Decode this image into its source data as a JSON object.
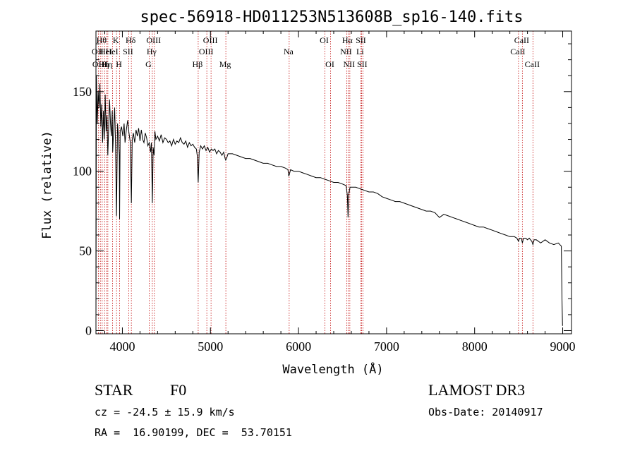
{
  "chart_data": {
    "type": "line",
    "title": "spec-56918-HD011253N513608B_sp16-140.fits",
    "xlabel": "Wavelength (Å)",
    "ylabel": "Flux (relative)",
    "xlim": [
      3700,
      9100
    ],
    "ylim": [
      -2,
      188
    ],
    "x_ticks": [
      4000,
      5000,
      6000,
      7000,
      8000,
      9000
    ],
    "x_tick_labels": [
      "4000",
      "5000",
      "6000",
      "7000",
      "8000",
      "9000"
    ],
    "y_ticks": [
      0,
      50,
      100,
      150
    ],
    "y_tick_labels": [
      "0",
      "50",
      "100",
      "150"
    ],
    "grid": false,
    "series": [
      {
        "name": "flux",
        "color": "#000000",
        "points": [
          [
            3700,
            5
          ],
          [
            3705,
            160
          ],
          [
            3715,
            130
          ],
          [
            3725,
            150
          ],
          [
            3735,
            140
          ],
          [
            3745,
            155
          ],
          [
            3755,
            128
          ],
          [
            3765,
            142
          ],
          [
            3775,
            118
          ],
          [
            3785,
            138
          ],
          [
            3795,
            120
          ],
          [
            3805,
            148
          ],
          [
            3815,
            125
          ],
          [
            3825,
            135
          ],
          [
            3835,
            110
          ],
          [
            3845,
            128
          ],
          [
            3855,
            145
          ],
          [
            3865,
            130
          ],
          [
            3875,
            122
          ],
          [
            3885,
            138
          ],
          [
            3890,
            112
          ],
          [
            3900,
            125
          ],
          [
            3912,
            140
          ],
          [
            3922,
            118
          ],
          [
            3933,
            72
          ],
          [
            3945,
            130
          ],
          [
            3955,
            122
          ],
          [
            3965,
            110
          ],
          [
            3968,
            70
          ],
          [
            3975,
            125
          ],
          [
            3990,
            128
          ],
          [
            4005,
            122
          ],
          [
            4020,
            130
          ],
          [
            4030,
            118
          ],
          [
            4045,
            126
          ],
          [
            4060,
            132
          ],
          [
            4075,
            124
          ],
          [
            4090,
            118
          ],
          [
            4102,
            80
          ],
          [
            4112,
            120
          ],
          [
            4125,
            124
          ],
          [
            4140,
            118
          ],
          [
            4155,
            126
          ],
          [
            4170,
            122
          ],
          [
            4185,
            127
          ],
          [
            4200,
            119
          ],
          [
            4215,
            126
          ],
          [
            4230,
            120
          ],
          [
            4245,
            118
          ],
          [
            4260,
            124
          ],
          [
            4275,
            121
          ],
          [
            4290,
            116
          ],
          [
            4305,
            118
          ],
          [
            4320,
            112
          ],
          [
            4330,
            118
          ],
          [
            4340,
            80
          ],
          [
            4350,
            115
          ],
          [
            4360,
            110
          ],
          [
            4370,
            125
          ],
          [
            4380,
            120
          ],
          [
            4400,
            122
          ],
          [
            4420,
            119
          ],
          [
            4440,
            123
          ],
          [
            4460,
            118
          ],
          [
            4480,
            121
          ],
          [
            4500,
            120
          ],
          [
            4520,
            118
          ],
          [
            4540,
            119
          ],
          [
            4560,
            116
          ],
          [
            4580,
            120
          ],
          [
            4600,
            117
          ],
          [
            4620,
            119
          ],
          [
            4640,
            118
          ],
          [
            4660,
            121
          ],
          [
            4680,
            118
          ],
          [
            4700,
            117
          ],
          [
            4720,
            119
          ],
          [
            4740,
            115
          ],
          [
            4760,
            118
          ],
          [
            4780,
            116
          ],
          [
            4800,
            117
          ],
          [
            4820,
            115
          ],
          [
            4840,
            114
          ],
          [
            4850,
            110
          ],
          [
            4861,
            93
          ],
          [
            4872,
            112
          ],
          [
            4890,
            116
          ],
          [
            4910,
            114
          ],
          [
            4930,
            116
          ],
          [
            4950,
            113
          ],
          [
            4970,
            115
          ],
          [
            4990,
            112
          ],
          [
            5010,
            114
          ],
          [
            5030,
            113
          ],
          [
            5050,
            114
          ],
          [
            5070,
            111
          ],
          [
            5090,
            113
          ],
          [
            5110,
            112
          ],
          [
            5130,
            110
          ],
          [
            5150,
            112
          ],
          [
            5167,
            108
          ],
          [
            5173,
            107
          ],
          [
            5183,
            108
          ],
          [
            5200,
            111
          ],
          [
            5250,
            111
          ],
          [
            5300,
            110
          ],
          [
            5350,
            109
          ],
          [
            5400,
            108
          ],
          [
            5450,
            108
          ],
          [
            5500,
            107
          ],
          [
            5550,
            106
          ],
          [
            5600,
            105
          ],
          [
            5650,
            105
          ],
          [
            5700,
            104
          ],
          [
            5750,
            103
          ],
          [
            5800,
            103
          ],
          [
            5850,
            102
          ],
          [
            5880,
            101
          ],
          [
            5890,
            97
          ],
          [
            5896,
            98
          ],
          [
            5910,
            101
          ],
          [
            5950,
            100
          ],
          [
            6000,
            100
          ],
          [
            6050,
            99
          ],
          [
            6100,
            98
          ],
          [
            6150,
            97
          ],
          [
            6200,
            96
          ],
          [
            6250,
            96
          ],
          [
            6300,
            95
          ],
          [
            6350,
            94
          ],
          [
            6400,
            93
          ],
          [
            6450,
            93
          ],
          [
            6500,
            92
          ],
          [
            6540,
            91
          ],
          [
            6555,
            85
          ],
          [
            6563,
            71
          ],
          [
            6570,
            85
          ],
          [
            6585,
            90
          ],
          [
            6600,
            90
          ],
          [
            6650,
            90
          ],
          [
            6700,
            89
          ],
          [
            6750,
            88
          ],
          [
            6800,
            87
          ],
          [
            6850,
            87
          ],
          [
            6900,
            86
          ],
          [
            6950,
            84
          ],
          [
            7000,
            83
          ],
          [
            7050,
            82
          ],
          [
            7100,
            81
          ],
          [
            7150,
            81
          ],
          [
            7200,
            80
          ],
          [
            7250,
            79
          ],
          [
            7300,
            78
          ],
          [
            7350,
            77
          ],
          [
            7400,
            76
          ],
          [
            7450,
            75
          ],
          [
            7500,
            75
          ],
          [
            7550,
            74
          ],
          [
            7600,
            71
          ],
          [
            7650,
            73
          ],
          [
            7700,
            72
          ],
          [
            7750,
            71
          ],
          [
            7800,
            70
          ],
          [
            7850,
            69
          ],
          [
            7900,
            68
          ],
          [
            7950,
            67
          ],
          [
            8000,
            66
          ],
          [
            8050,
            65
          ],
          [
            8100,
            65
          ],
          [
            8150,
            64
          ],
          [
            8200,
            63
          ],
          [
            8250,
            62
          ],
          [
            8300,
            61
          ],
          [
            8350,
            60
          ],
          [
            8400,
            59
          ],
          [
            8450,
            59
          ],
          [
            8480,
            58
          ],
          [
            8498,
            56
          ],
          [
            8510,
            58
          ],
          [
            8530,
            58
          ],
          [
            8542,
            55
          ],
          [
            8555,
            58
          ],
          [
            8580,
            58
          ],
          [
            8600,
            57
          ],
          [
            8620,
            58
          ],
          [
            8635,
            57
          ],
          [
            8650,
            56
          ],
          [
            8662,
            54
          ],
          [
            8675,
            57
          ],
          [
            8700,
            57
          ],
          [
            8750,
            55
          ],
          [
            8800,
            57
          ],
          [
            8850,
            55
          ],
          [
            8900,
            54
          ],
          [
            8950,
            55
          ],
          [
            8985,
            53
          ],
          [
            8992,
            20
          ],
          [
            8998,
            3
          ]
        ]
      }
    ],
    "line_markers": [
      {
        "wl": 3727,
        "label": "OII",
        "row": 2
      },
      {
        "wl": 3750,
        "label": "OIII",
        "row": 3
      },
      {
        "wl": 3771,
        "label": "Hθ",
        "row": 1
      },
      {
        "wl": 3798,
        "label": "Hη",
        "row": 3
      },
      {
        "wl": 3820,
        "label": "HeI",
        "row": 2
      },
      {
        "wl": 3835,
        "label": "Hη",
        "row": 3
      },
      {
        "wl": 3889,
        "label": "HeI",
        "row": 2
      },
      {
        "wl": 3934,
        "label": "K",
        "row": 1
      },
      {
        "wl": 3969,
        "label": "H",
        "row": 3
      },
      {
        "wl": 4072,
        "label": "SII",
        "row": 2
      },
      {
        "wl": 4102,
        "label": "Hδ",
        "row": 1
      },
      {
        "wl": 4305,
        "label": "G",
        "row": 3
      },
      {
        "wl": 4340,
        "label": "Hγ",
        "row": 2
      },
      {
        "wl": 4363,
        "label": "OIII",
        "row": 1
      },
      {
        "wl": 4861,
        "label": "Hβ",
        "row": 3
      },
      {
        "wl": 4959,
        "label": "OIII",
        "row": 2
      },
      {
        "wl": 5007,
        "label": "OIII",
        "row": 1
      },
      {
        "wl": 5175,
        "label": "Mg",
        "row": 3
      },
      {
        "wl": 5894,
        "label": "Na",
        "row": 2
      },
      {
        "wl": 6300,
        "label": "OI",
        "row": 1
      },
      {
        "wl": 6364,
        "label": "OI",
        "row": 3
      },
      {
        "wl": 6548,
        "label": "NII",
        "row": 2
      },
      {
        "wl": 6563,
        "label": "Hα",
        "row": 1
      },
      {
        "wl": 6583,
        "label": "NII",
        "row": 3
      },
      {
        "wl": 6707,
        "label": "Li",
        "row": 2
      },
      {
        "wl": 6716,
        "label": "SII",
        "row": 1
      },
      {
        "wl": 6731,
        "label": "SII",
        "row": 3
      },
      {
        "wl": 8498,
        "label": "CaII",
        "row": 2
      },
      {
        "wl": 8542,
        "label": "CaII",
        "row": 1
      },
      {
        "wl": 8662,
        "label": "CaII",
        "row": 3
      }
    ],
    "marker_color": "#c00000"
  },
  "info": {
    "object_class": "STAR",
    "subclass": "F0",
    "survey": "LAMOST DR3",
    "velocity": "cz = -24.5 ± 15.9 km/s",
    "obs_date": "Obs-Date: 20140917",
    "coords": "RA =  16.90199, DEC =  53.70151"
  }
}
